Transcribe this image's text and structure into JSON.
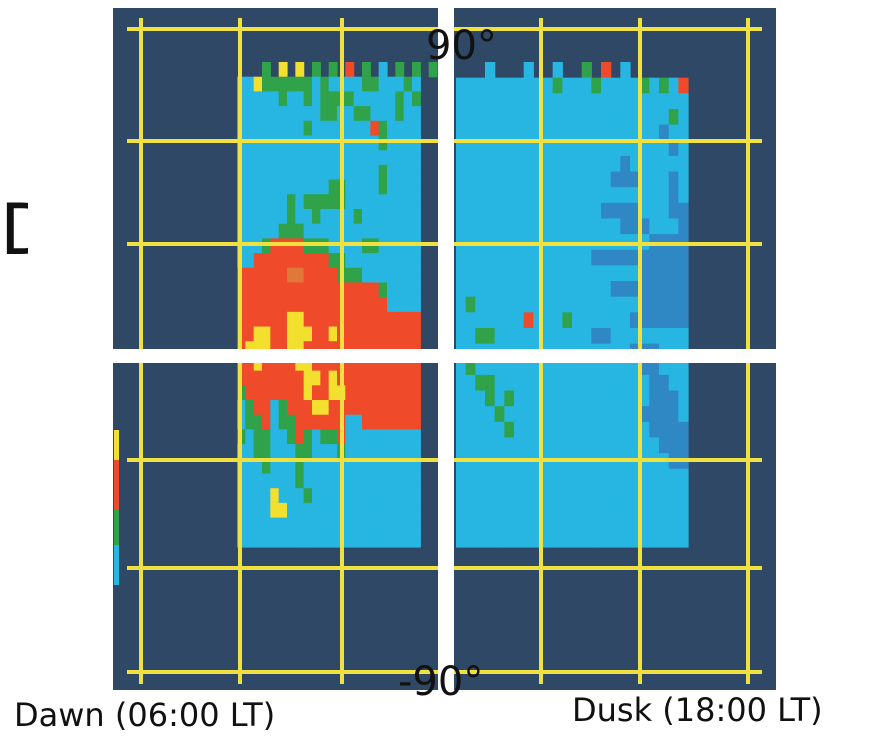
{
  "chart_data": {
    "type": "heatmap",
    "labels": {
      "top": "90°",
      "bottom": "-90°",
      "left_time": "Dawn (06:00 LT)",
      "right_time": "Dusk (18:00 LT)",
      "partial_left": "D"
    },
    "color_scale": [
      "#1f5a7a",
      "#2f87c4",
      "#27b6e2",
      "#2fa24a",
      "#5a9a3a",
      "#e0783a",
      "#ef4a2a",
      "#f2df2e"
    ],
    "colors": {
      "background": "#2f4866",
      "grid": "#f0e040",
      "divider": "#ffffff",
      "scale_bar": [
        "#f2df2e",
        "#ef4a2a",
        "#2fa24a",
        "#27b6e2"
      ]
    },
    "panels": [
      {
        "name": "dawn",
        "rows": [
          "   G Y Y G G R G B G G G",
          "BBYGGGGGGBGBBBBGGBBBGB",
          "BBBBBGBBGBGGGGBBBBBGBG",
          "BBBBBBBBBBGGBBGGBBBGBB",
          "BBBBBBBBGBBBBBBBRGBBBB",
          "BBBBBBBBBBBBBBBBBGBBBB",
          "BBBBBBBBBBBBBBBBBBBBBB",
          "BBBBBBBBBBBBBBBBBGBBBB",
          "BBBBBBBBBBBGGBBBBGBBBB",
          "BBBBBBGBGGGGGBBBBBBBBB",
          "BBBBBBGBBGBBBBGBBBBBBB",
          "BBBBBGGGBBBBBBBBBBBBBB",
          "BBBGRRRRGGGBBBBGGBBBBB",
          "BBRRRRRRRRRGGBBBBBBBBB",
          "RRRRRROORRRRGGGBBBBBBB",
          "RRRRRRRRRRRRRRRRRGBBBB",
          "RRRRRRRRRRRRRRRRRRBBBB",
          "RRRRRRYYRRRRRRRRRRRRRR",
          "RRYYRRYYYRRYRRRRRRRRRR",
          "RYYYRRYYRRRRRRRRRRRRRR",
          "RRYRRRRYYRRRRRRRRRRRRR",
          "RRRRRRRRYYRYRRRRRRRRRR",
          "GRRRRRRRYRRYYRRRRRRRRR",
          "BGRRBGRRRYYRRRRRRRRRRR",
          "BGGRBGGRRRRRRBBRRRRRRR",
          "GBGGBBGRGBGGRBBBBBBBBB",
          "BBGGBBBGGBBBGBBBBBBBBB",
          "BBBGBBBGBBBBBBBBBBBBBB",
          "BBBBBBBGBBBBBBBBBBBBBB",
          "BBBBYBBBGBBBBBBBBBBBBB",
          "BBBBYYBBBBBBBBBBBBBBBB",
          "BBBBBBBBBBBBBBBBBBBBBB",
          "BBBBBBBBBBBBBBBBBBBBBB"
        ]
      },
      {
        "name": "dusk",
        "rows": [
          "   B   B  B  G R B",
          "BBBBBBBBBBGBBBGBBBBGBGBR",
          "BBBBBBBBBBBBBBBBBBBBBBBB",
          "BBBBBBBBBBBBBBBBBBBBBBGB",
          "BBBBBBBBBBBBBBBBBBBBBDBB",
          "BBBBBBBBBBBBBBBBBBBBBBDB",
          "BBBBBBBBBBBBBBBBBDBBBBBB",
          "BBBBBBBBBBBBBBBBDDDBBBDB",
          "BBBBBBBBBBBBBBBBBBBBBBDB",
          "BBBBBBBBBBBBBBBDDDDBBBDD",
          "BBBBBBBBBBBBBBBBBDDDBBBD",
          "BBBBBBBBBBBBBBBBBBBBDDDD",
          "BBBBBBBBBBBBBBDDDDDDDDDD",
          "BBBBBBBBBBBBBBBBBBBDDDDD",
          "BBBBBBBBBBBBBBBBDDDDDDDD",
          "BGBBBBBBBBBBBBBBBBBDDDDD",
          "BBBBBBBRBBBGBBBBBBDDDDDD",
          "BBGGBBBBBBBBBBDDBBBBBBBB",
          "BBBBBBBBBBBBBBBBBBDDDBBB",
          "BGBBBBBBBBBBBBBBBBBDDBBB",
          "BBGGBBBBBBBBBBBBBBBBDDBB",
          "BBBGBGBBBBBBBBBBBBBBDDDB",
          "BBBBGBBBBBBBBBBBBBBDDDDB",
          "BBBBBGBBBBBBBBBBBBBBDDDD",
          "BBBBBBBBBBBBBBBBBBBBBDDD",
          "BBBBBBBBBBBBBBBBBBBBBBDD",
          "BBBBBBBBBBBBBBBBBBBBBBBB",
          "BBBBBBBBBBBBBBBBBBBBBBBB",
          "BBBBBBBBBBBBBBBBBBBBBBBB",
          "BBBBBBBBBBBBBBBBBBBBBBBB",
          "BBBBBBBBBBBBBBBBBBBBBBBB"
        ]
      }
    ]
  }
}
